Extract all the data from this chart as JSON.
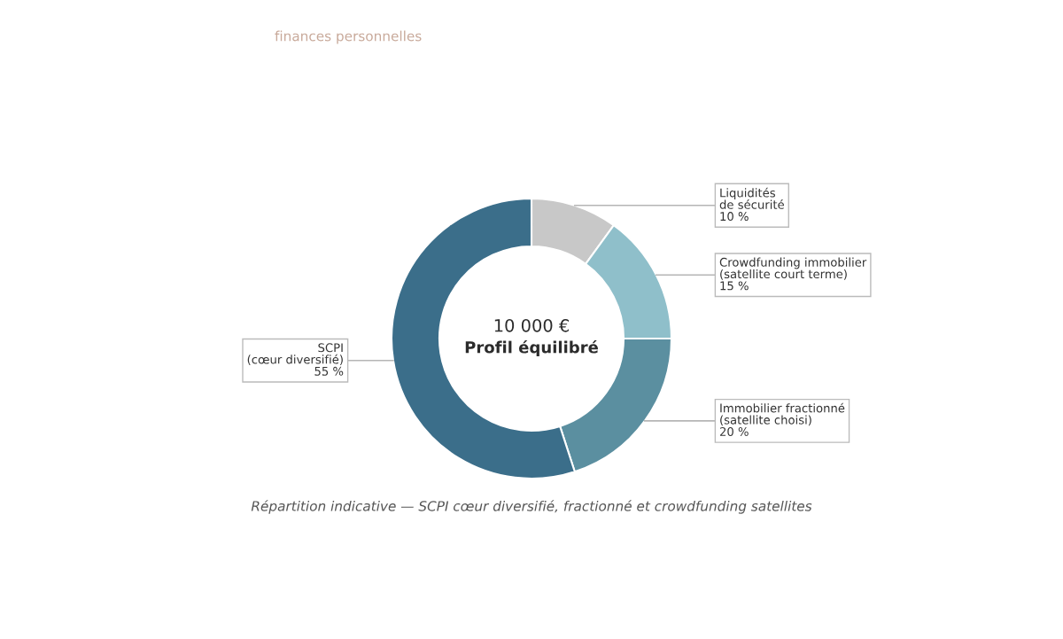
{
  "chart_data": {
    "type": "donut",
    "categories": [
      "Liquidités\nde sécurité",
      "Crowdfunding immobilier\n(satellite court terme)",
      "Immobilier fractionné\n(satellite choisi)",
      "SCPI\n(cœur diversifié)"
    ],
    "values": [
      10,
      15,
      20,
      55
    ],
    "value_labels": [
      "10 %",
      "15 %",
      "20 %",
      "55 %"
    ],
    "colors": [
      "#c8c8c8",
      "#8fbfca",
      "#5b8fa0",
      "#3b6e8a"
    ],
    "annotations": [
      "10 000 €",
      "Profil équilibré",
      "Répartition indicative — SCPI cœur diversifié, fractionné et crowdfunding satellites",
      "finances personnelles"
    ],
    "legend": false
  }
}
